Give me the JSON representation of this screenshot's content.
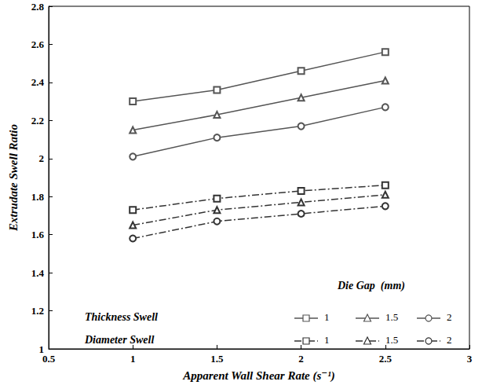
{
  "chart_data": {
    "type": "line",
    "x_label": "Apparent Wall Shear Rate (s⁻¹)",
    "y_label": "Extrudate Swell Ratio",
    "legend_title": "Die Gap  (mm)",
    "legend": "lower right",
    "grid": false,
    "x": [
      1,
      1.5,
      2,
      2.5
    ],
    "xlim": [
      0.5,
      3
    ],
    "xticks": [
      0.5,
      1,
      1.5,
      2,
      2.5,
      3
    ],
    "ylim": [
      1,
      2.8
    ],
    "yticks": [
      1,
      1.2,
      1.4,
      1.6,
      1.8,
      2,
      2.2,
      2.4,
      2.6,
      2.8
    ],
    "series": [
      {
        "name": "1",
        "group": "Thickness Swell",
        "color": "#555555",
        "marker": "square",
        "line_style": "solid",
        "values": [
          2.3,
          2.36,
          2.46,
          2.56
        ]
      },
      {
        "name": "1.5",
        "group": "Thickness Swell",
        "color": "#555555",
        "marker": "triangle",
        "line_style": "solid",
        "values": [
          2.15,
          2.23,
          2.32,
          2.41
        ]
      },
      {
        "name": "2",
        "group": "Thickness Swell",
        "color": "#555555",
        "marker": "circle",
        "line_style": "solid",
        "values": [
          2.01,
          2.11,
          2.17,
          2.27
        ]
      },
      {
        "name": "1",
        "group": "Diameter Swell",
        "color": "#333333",
        "marker": "square",
        "line_style": "dashdot",
        "values": [
          1.73,
          1.79,
          1.83,
          1.86
        ]
      },
      {
        "name": "1.5",
        "group": "Diameter Swell",
        "color": "#333333",
        "marker": "triangle",
        "line_style": "dashdot",
        "values": [
          1.65,
          1.73,
          1.77,
          1.81
        ]
      },
      {
        "name": "2",
        "group": "Diameter Swell",
        "color": "#333333",
        "marker": "circle",
        "line_style": "dashdot",
        "values": [
          1.58,
          1.67,
          1.71,
          1.75
        ]
      }
    ]
  }
}
